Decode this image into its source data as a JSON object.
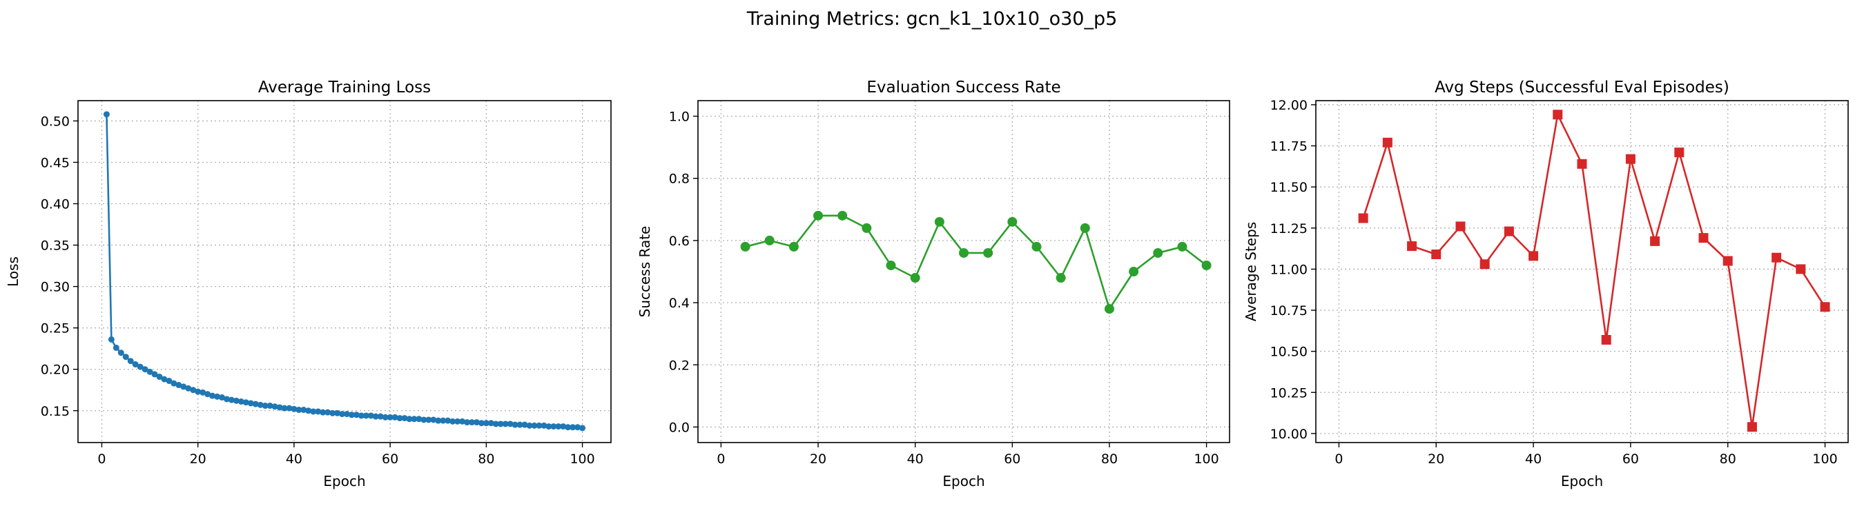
{
  "figure": {
    "suptitle": "Training Metrics: gcn_k1_10x10_o30_p5"
  },
  "chart_data": [
    {
      "type": "line",
      "title": "Average Training Loss",
      "xlabel": "Epoch",
      "ylabel": "Loss",
      "xlim": [
        -4.95,
        105.95
      ],
      "ylim": [
        0.1115,
        0.5245
      ],
      "xticks": [
        0,
        20,
        40,
        60,
        80,
        100
      ],
      "yticks": [
        0.15,
        0.2,
        0.25,
        0.3,
        0.35,
        0.4,
        0.45,
        0.5
      ],
      "ytick_labels": [
        "0.15",
        "0.20",
        "0.25",
        "0.30",
        "0.35",
        "0.40",
        "0.45",
        "0.50"
      ],
      "grid": true,
      "marker": "circle",
      "series": [
        {
          "color": "#1f77b4",
          "x": [
            1,
            2,
            3,
            4,
            5,
            6,
            7,
            8,
            9,
            10,
            11,
            12,
            13,
            14,
            15,
            16,
            17,
            18,
            19,
            20,
            21,
            22,
            23,
            24,
            25,
            26,
            27,
            28,
            29,
            30,
            31,
            32,
            33,
            34,
            35,
            36,
            37,
            38,
            39,
            40,
            41,
            42,
            43,
            44,
            45,
            46,
            47,
            48,
            49,
            50,
            51,
            52,
            53,
            54,
            55,
            56,
            57,
            58,
            59,
            60,
            61,
            62,
            63,
            64,
            65,
            66,
            67,
            68,
            69,
            70,
            71,
            72,
            73,
            74,
            75,
            76,
            77,
            78,
            79,
            80,
            81,
            82,
            83,
            84,
            85,
            86,
            87,
            88,
            89,
            90,
            91,
            92,
            93,
            94,
            95,
            96,
            97,
            98,
            99,
            100
          ],
          "y": [
            0.508,
            0.236,
            0.226,
            0.22,
            0.215,
            0.21,
            0.206,
            0.203,
            0.2,
            0.197,
            0.194,
            0.191,
            0.188,
            0.186,
            0.183,
            0.181,
            0.179,
            0.177,
            0.175,
            0.173,
            0.172,
            0.17,
            0.168,
            0.167,
            0.166,
            0.164,
            0.163,
            0.162,
            0.161,
            0.16,
            0.159,
            0.158,
            0.157,
            0.156,
            0.156,
            0.155,
            0.154,
            0.153,
            0.153,
            0.152,
            0.151,
            0.151,
            0.15,
            0.149,
            0.149,
            0.148,
            0.148,
            0.147,
            0.147,
            0.146,
            0.146,
            0.145,
            0.145,
            0.144,
            0.144,
            0.144,
            0.143,
            0.143,
            0.142,
            0.142,
            0.142,
            0.141,
            0.141,
            0.14,
            0.14,
            0.14,
            0.139,
            0.139,
            0.139,
            0.138,
            0.138,
            0.138,
            0.137,
            0.137,
            0.137,
            0.136,
            0.136,
            0.136,
            0.135,
            0.135,
            0.135,
            0.134,
            0.134,
            0.134,
            0.134,
            0.133,
            0.133,
            0.133,
            0.132,
            0.132,
            0.132,
            0.132,
            0.131,
            0.131,
            0.131,
            0.131,
            0.13,
            0.13,
            0.13,
            0.129
          ]
        }
      ]
    },
    {
      "type": "line",
      "title": "Evaluation Success Rate",
      "xlabel": "Epoch",
      "ylabel": "Success Rate",
      "xlim": [
        -4.75,
        104.75
      ],
      "ylim": [
        -0.05,
        1.05
      ],
      "xticks": [
        0,
        20,
        40,
        60,
        80,
        100
      ],
      "yticks": [
        0.0,
        0.2,
        0.4,
        0.6,
        0.8,
        1.0
      ],
      "ytick_labels": [
        "0.0",
        "0.2",
        "0.4",
        "0.6",
        "0.8",
        "1.0"
      ],
      "grid": true,
      "marker": "circle",
      "series": [
        {
          "color": "#2ca02c",
          "x": [
            5,
            10,
            15,
            20,
            25,
            30,
            35,
            40,
            45,
            50,
            55,
            60,
            65,
            70,
            75,
            80,
            85,
            90,
            95,
            100
          ],
          "y": [
            0.58,
            0.6,
            0.58,
            0.68,
            0.68,
            0.64,
            0.52,
            0.48,
            0.66,
            0.56,
            0.56,
            0.66,
            0.58,
            0.48,
            0.64,
            0.38,
            0.5,
            0.56,
            0.58,
            0.52
          ]
        }
      ]
    },
    {
      "type": "line",
      "title": "Avg Steps (Successful Eval Episodes)",
      "xlabel": "Epoch",
      "ylabel": "Average Steps",
      "xlim": [
        -4.75,
        104.75
      ],
      "ylim": [
        9.945,
        12.025
      ],
      "xticks": [
        0,
        20,
        40,
        60,
        80,
        100
      ],
      "yticks": [
        10.0,
        10.25,
        10.5,
        10.75,
        11.0,
        11.25,
        11.5,
        11.75,
        12.0
      ],
      "ytick_labels": [
        "10.00",
        "10.25",
        "10.50",
        "10.75",
        "11.00",
        "11.25",
        "11.50",
        "11.75",
        "12.00"
      ],
      "grid": true,
      "marker": "square",
      "series": [
        {
          "color": "#d62728",
          "x": [
            5,
            10,
            15,
            20,
            25,
            30,
            35,
            40,
            45,
            50,
            55,
            60,
            65,
            70,
            75,
            80,
            85,
            90,
            95,
            100
          ],
          "y": [
            11.31,
            11.77,
            11.14,
            11.09,
            11.26,
            11.03,
            11.23,
            11.08,
            11.94,
            11.64,
            10.57,
            11.67,
            11.17,
            11.71,
            11.19,
            11.05,
            10.04,
            11.07,
            11.0,
            10.77
          ]
        }
      ]
    }
  ]
}
